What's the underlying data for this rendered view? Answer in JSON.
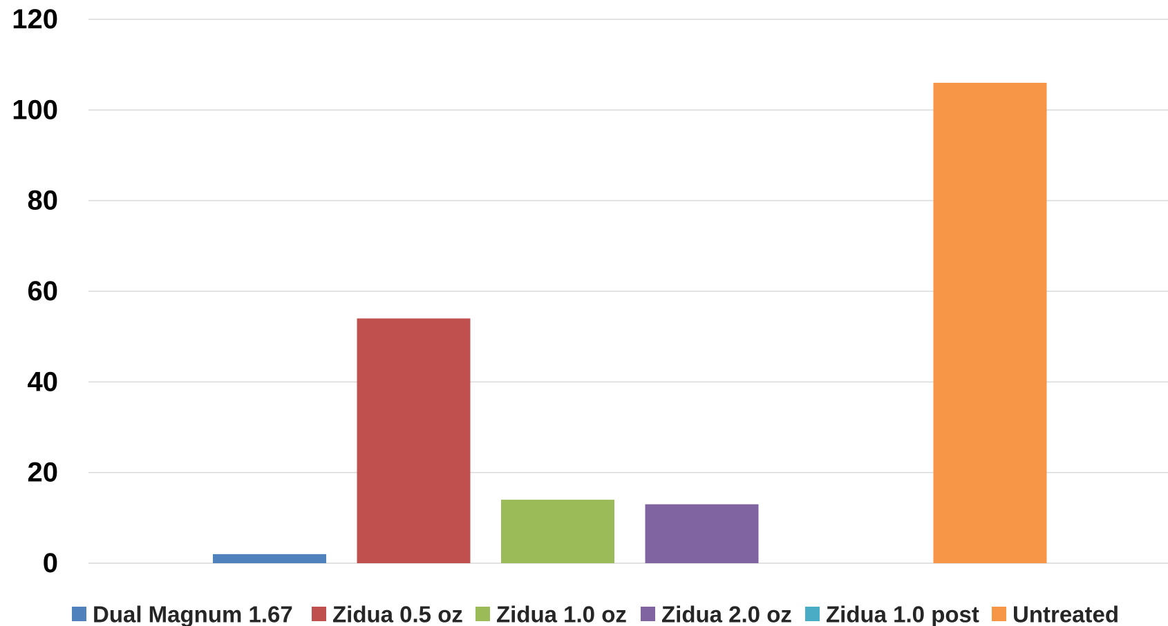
{
  "chart_data": {
    "type": "bar",
    "title": "",
    "xlabel": "",
    "ylabel": "",
    "ylim": [
      0,
      120
    ],
    "yticks": [
      0,
      20,
      40,
      60,
      80,
      100,
      120
    ],
    "grid": true,
    "legend_position": "bottom",
    "series": [
      {
        "name": "Dual Magnum 1.67",
        "value": 2,
        "color": "#4f81bd"
      },
      {
        "name": "Zidua 0.5 oz",
        "value": 54,
        "color": "#c0504d"
      },
      {
        "name": "Zidua 1.0 oz",
        "value": 14,
        "color": "#9bbb59"
      },
      {
        "name": "Zidua 2.0 oz",
        "value": 13,
        "color": "#8064a2"
      },
      {
        "name": "Zidua 1.0 post",
        "value": 0,
        "color": "#4bacc6"
      },
      {
        "name": "Untreated",
        "value": 106,
        "color": "#f79646"
      }
    ]
  }
}
